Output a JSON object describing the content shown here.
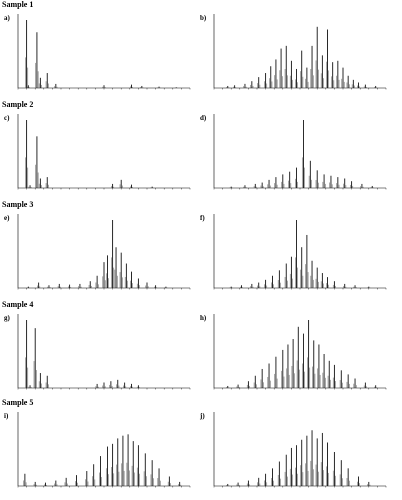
{
  "figure": {
    "samples": [
      {
        "title": "Sample 1",
        "left_letter": "a)",
        "right_letter": "b)"
      },
      {
        "title": "Sample 2",
        "left_letter": "c)",
        "right_letter": "d)"
      },
      {
        "title": "Sample 3",
        "left_letter": "e)",
        "right_letter": "f)"
      },
      {
        "title": "Sample 4",
        "left_letter": "g)",
        "right_letter": "h)"
      },
      {
        "title": "Sample 5",
        "left_letter": "i)",
        "right_letter": "j)"
      }
    ]
  },
  "chart_data": [
    {
      "id": "a",
      "type": "line",
      "title": "",
      "xlabel": "",
      "ylabel": "",
      "xlim": [
        0,
        100
      ],
      "ylim": [
        0,
        100
      ],
      "grid": false,
      "series": [
        {
          "x": [
            5,
            6,
            11,
            13,
            17,
            22,
            50,
            66,
            72,
            82,
            92
          ],
          "values": [
            100,
            4,
            82,
            15,
            22,
            6,
            4,
            5,
            3,
            2,
            1
          ]
        }
      ]
    },
    {
      "id": "b",
      "type": "line",
      "title": "",
      "xlabel": "",
      "ylabel": "",
      "xlim": [
        0,
        100
      ],
      "ylim": [
        0,
        100
      ],
      "grid": false,
      "series": [
        {
          "x": [
            8,
            12,
            18,
            22,
            26,
            30,
            33,
            36,
            39,
            42,
            45,
            48,
            51,
            54,
            57,
            60,
            63,
            66,
            69,
            72,
            75,
            78,
            81,
            84,
            88,
            94
          ],
          "values": [
            3,
            4,
            6,
            10,
            16,
            22,
            32,
            42,
            58,
            62,
            40,
            28,
            55,
            30,
            62,
            90,
            48,
            86,
            38,
            40,
            30,
            18,
            12,
            8,
            5,
            3
          ]
        }
      ]
    },
    {
      "id": "c",
      "type": "line",
      "title": "",
      "xlabel": "",
      "ylabel": "",
      "xlim": [
        0,
        100
      ],
      "ylim": [
        0,
        100
      ],
      "grid": false,
      "series": [
        {
          "x": [
            5,
            7,
            11,
            13,
            17,
            55,
            60,
            66,
            78
          ],
          "values": [
            100,
            4,
            76,
            14,
            16,
            6,
            12,
            5,
            2
          ]
        }
      ]
    },
    {
      "id": "d",
      "type": "line",
      "title": "",
      "xlabel": "",
      "ylabel": "",
      "xlim": [
        0,
        100
      ],
      "ylim": [
        0,
        100
      ],
      "grid": false,
      "series": [
        {
          "x": [
            10,
            18,
            24,
            28,
            32,
            36,
            40,
            44,
            48,
            52,
            56,
            60,
            64,
            68,
            72,
            76,
            80,
            86,
            92
          ],
          "values": [
            2,
            4,
            6,
            8,
            12,
            16,
            20,
            24,
            30,
            100,
            40,
            26,
            20,
            18,
            16,
            14,
            10,
            6,
            3
          ]
        }
      ]
    },
    {
      "id": "e",
      "type": "line",
      "title": "",
      "xlabel": "",
      "ylabel": "",
      "xlim": [
        0,
        100
      ],
      "ylim": [
        0,
        100
      ],
      "grid": false,
      "series": [
        {
          "x": [
            6,
            12,
            18,
            24,
            30,
            36,
            42,
            46,
            50,
            52,
            55,
            57,
            60,
            63,
            66,
            70,
            75,
            80,
            86
          ],
          "values": [
            2,
            8,
            4,
            6,
            5,
            6,
            10,
            18,
            38,
            48,
            100,
            60,
            52,
            36,
            24,
            14,
            8,
            4,
            2
          ]
        }
      ]
    },
    {
      "id": "f",
      "type": "line",
      "title": "",
      "xlabel": "",
      "ylabel": "",
      "xlim": [
        0,
        100
      ],
      "ylim": [
        0,
        100
      ],
      "grid": false,
      "series": [
        {
          "x": [
            10,
            16,
            22,
            26,
            30,
            34,
            38,
            42,
            45,
            48,
            51,
            54,
            57,
            60,
            63,
            66,
            70,
            76,
            82,
            90
          ],
          "values": [
            2,
            4,
            6,
            8,
            12,
            18,
            26,
            36,
            46,
            100,
            60,
            78,
            40,
            30,
            22,
            16,
            10,
            6,
            4,
            2
          ]
        }
      ]
    },
    {
      "id": "g",
      "type": "line",
      "title": "",
      "xlabel": "",
      "ylabel": "",
      "xlim": [
        0,
        100
      ],
      "ylim": [
        0,
        100
      ],
      "grid": false,
      "series": [
        {
          "x": [
            5,
            7,
            10,
            13,
            17,
            46,
            50,
            54,
            58,
            62,
            66,
            70
          ],
          "values": [
            100,
            4,
            88,
            22,
            18,
            6,
            8,
            10,
            12,
            8,
            6,
            4
          ]
        }
      ]
    },
    {
      "id": "h",
      "type": "line",
      "title": "",
      "xlabel": "",
      "ylabel": "",
      "xlim": [
        0,
        100
      ],
      "ylim": [
        0,
        100
      ],
      "grid": false,
      "series": [
        {
          "x": [
            8,
            14,
            20,
            24,
            28,
            32,
            36,
            40,
            43,
            46,
            49,
            52,
            55,
            58,
            61,
            64,
            67,
            70,
            74,
            78,
            82,
            88,
            94
          ],
          "values": [
            3,
            5,
            10,
            18,
            28,
            36,
            46,
            56,
            64,
            72,
            90,
            80,
            100,
            70,
            64,
            50,
            40,
            34,
            26,
            20,
            14,
            8,
            4
          ]
        }
      ]
    },
    {
      "id": "i",
      "type": "line",
      "title": "",
      "xlabel": "",
      "ylabel": "",
      "xlim": [
        0,
        100
      ],
      "ylim": [
        0,
        100
      ],
      "grid": false,
      "series": [
        {
          "x": [
            4,
            10,
            16,
            22,
            28,
            34,
            40,
            44,
            48,
            52,
            55,
            58,
            61,
            64,
            67,
            70,
            74,
            78,
            82,
            88,
            94
          ],
          "values": [
            18,
            6,
            5,
            8,
            12,
            16,
            22,
            32,
            44,
            58,
            62,
            70,
            74,
            76,
            66,
            60,
            48,
            38,
            26,
            14,
            6
          ]
        }
      ]
    },
    {
      "id": "j",
      "type": "line",
      "title": "",
      "xlabel": "",
      "ylabel": "",
      "xlim": [
        0,
        100
      ],
      "ylim": [
        0,
        100
      ],
      "grid": false,
      "series": [
        {
          "x": [
            8,
            14,
            20,
            26,
            30,
            34,
            38,
            42,
            45,
            48,
            51,
            54,
            57,
            60,
            63,
            66,
            70,
            74,
            78,
            84,
            90
          ],
          "values": [
            3,
            5,
            8,
            12,
            18,
            26,
            36,
            46,
            56,
            60,
            68,
            74,
            82,
            70,
            78,
            64,
            50,
            38,
            26,
            14,
            6
          ]
        }
      ]
    }
  ]
}
